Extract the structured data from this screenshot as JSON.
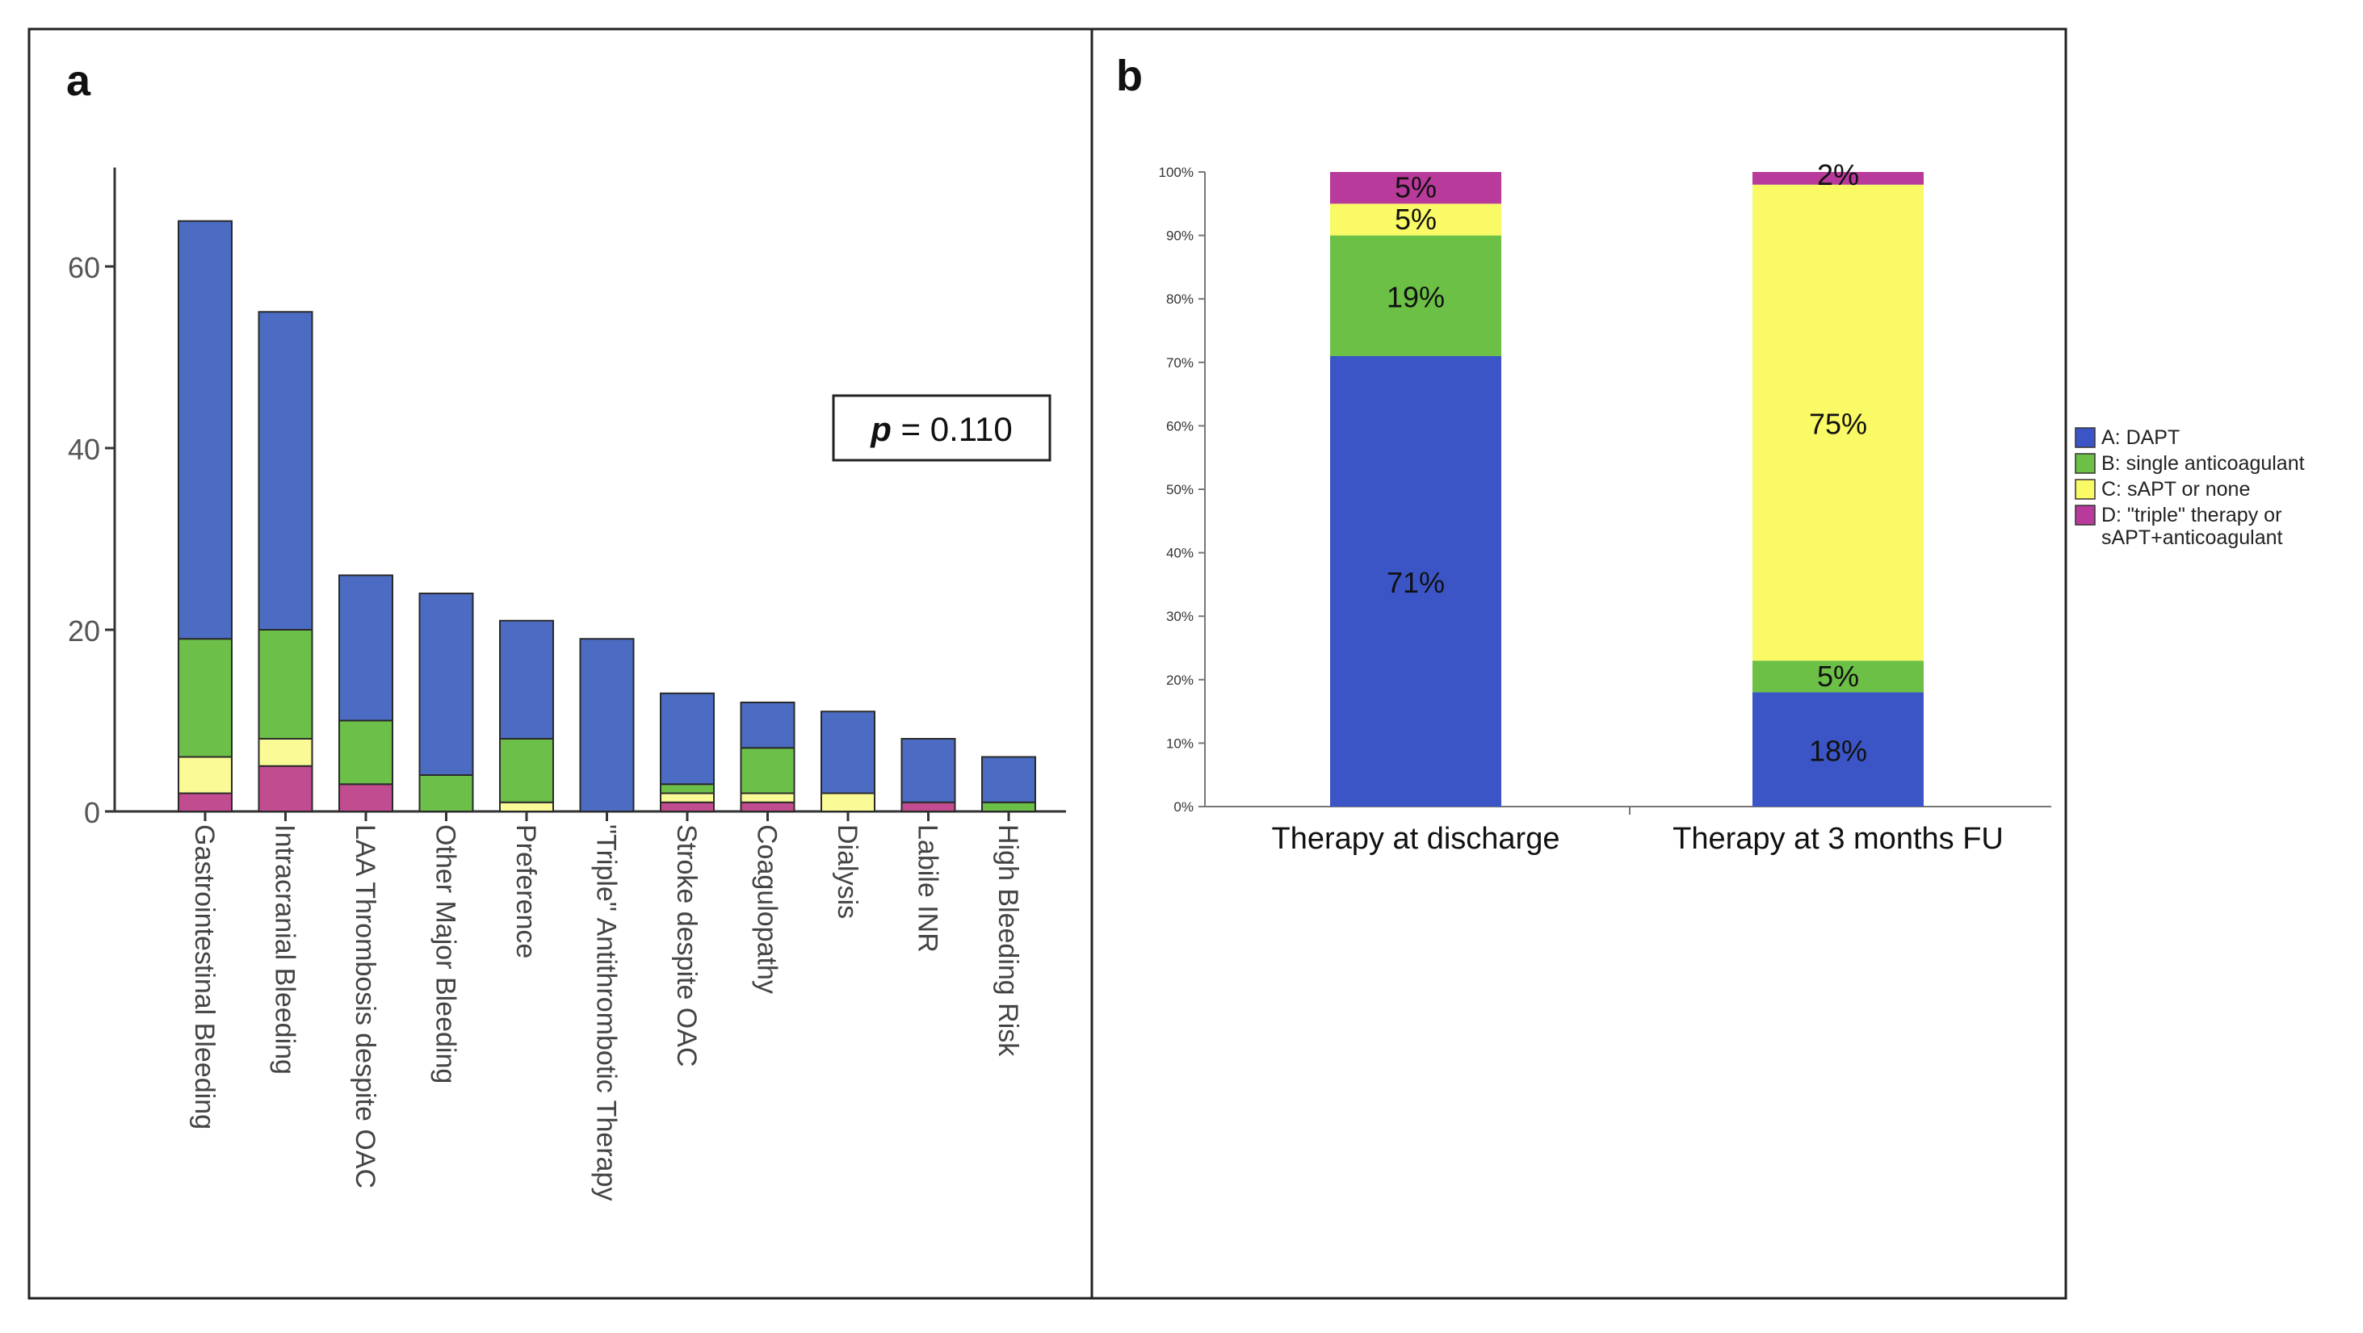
{
  "chart_data": [
    {
      "panel": "a",
      "type": "bar",
      "stacked": true,
      "categories": [
        "Gastrointestinal Bleeding",
        "Intracranial Bleeding",
        "LAA Thrombosis despite OAC",
        "Other Major Bleeding",
        "Preference",
        "\"Triple\" Antithrombotic Therapy",
        "Stroke despite OAC",
        "Coagulopathy",
        "Dialysis",
        "Labile INR",
        "High Bleeding Risk"
      ],
      "series": [
        {
          "name": "D: \"triple\" therapy or sAPT+anticoagulant",
          "values": [
            2,
            5,
            3,
            0,
            0,
            0,
            1,
            1,
            0,
            1,
            0
          ]
        },
        {
          "name": "C: sAPT or none",
          "values": [
            4,
            3,
            0,
            0,
            1,
            0,
            1,
            1,
            2,
            0,
            0
          ]
        },
        {
          "name": "B: single anticoagulant",
          "values": [
            13,
            12,
            7,
            4,
            7,
            0,
            1,
            5,
            0,
            0,
            1
          ]
        },
        {
          "name": "A: DAPT",
          "values": [
            46,
            35,
            16,
            20,
            13,
            19,
            10,
            5,
            9,
            7,
            5
          ]
        }
      ],
      "ylim": [
        0,
        70
      ],
      "yticks": [
        0,
        20,
        40,
        60
      ],
      "annotation": {
        "italic": "p",
        "rest": " = 0.110"
      },
      "xlabel": "",
      "ylabel": ""
    },
    {
      "panel": "b",
      "type": "bar",
      "stacked": true,
      "percent": true,
      "categories": [
        "Therapy at discharge",
        "Therapy at 3 months FU"
      ],
      "series": [
        {
          "name": "A: DAPT",
          "values": [
            71,
            18
          ],
          "labels": [
            "71%",
            "18%"
          ]
        },
        {
          "name": "B: single anticoagulant",
          "values": [
            19,
            5
          ],
          "labels": [
            "19%",
            "5%"
          ]
        },
        {
          "name": "C: sAPT or none",
          "values": [
            5,
            75
          ],
          "labels": [
            "5%",
            "75%"
          ]
        },
        {
          "name": "D: \"triple\" therapy or sAPT+anticoagulant",
          "values": [
            5,
            2
          ],
          "labels": [
            "5%",
            "2%"
          ]
        }
      ],
      "ylim": [
        0,
        100
      ],
      "yticks": [
        "0%",
        "10%",
        "20%",
        "30%",
        "40%",
        "50%",
        "60%",
        "70%",
        "80%",
        "90%",
        "100%"
      ],
      "legend_position": "right",
      "legend": [
        {
          "lines": [
            "A: DAPT"
          ],
          "color": "#3c55c6"
        },
        {
          "lines": [
            "B: single anticoagulant"
          ],
          "color": "#6cc046"
        },
        {
          "lines": [
            "C: sAPT or none"
          ],
          "color": "#fafa66"
        },
        {
          "lines": [
            "D: \"triple\" therapy or",
            "sAPT+anticoagulant"
          ],
          "color": "#b83a9a"
        }
      ]
    }
  ],
  "panels": {
    "a": "a",
    "b": "b"
  },
  "colors": {
    "A": "#4b6cc2",
    "B": "#6cc04a",
    "C": "#fafa96",
    "D": "#c24c90",
    "A2": "#3c55c6",
    "B2": "#6cc046",
    "C2": "#fafa66",
    "D2": "#b83a9a"
  }
}
